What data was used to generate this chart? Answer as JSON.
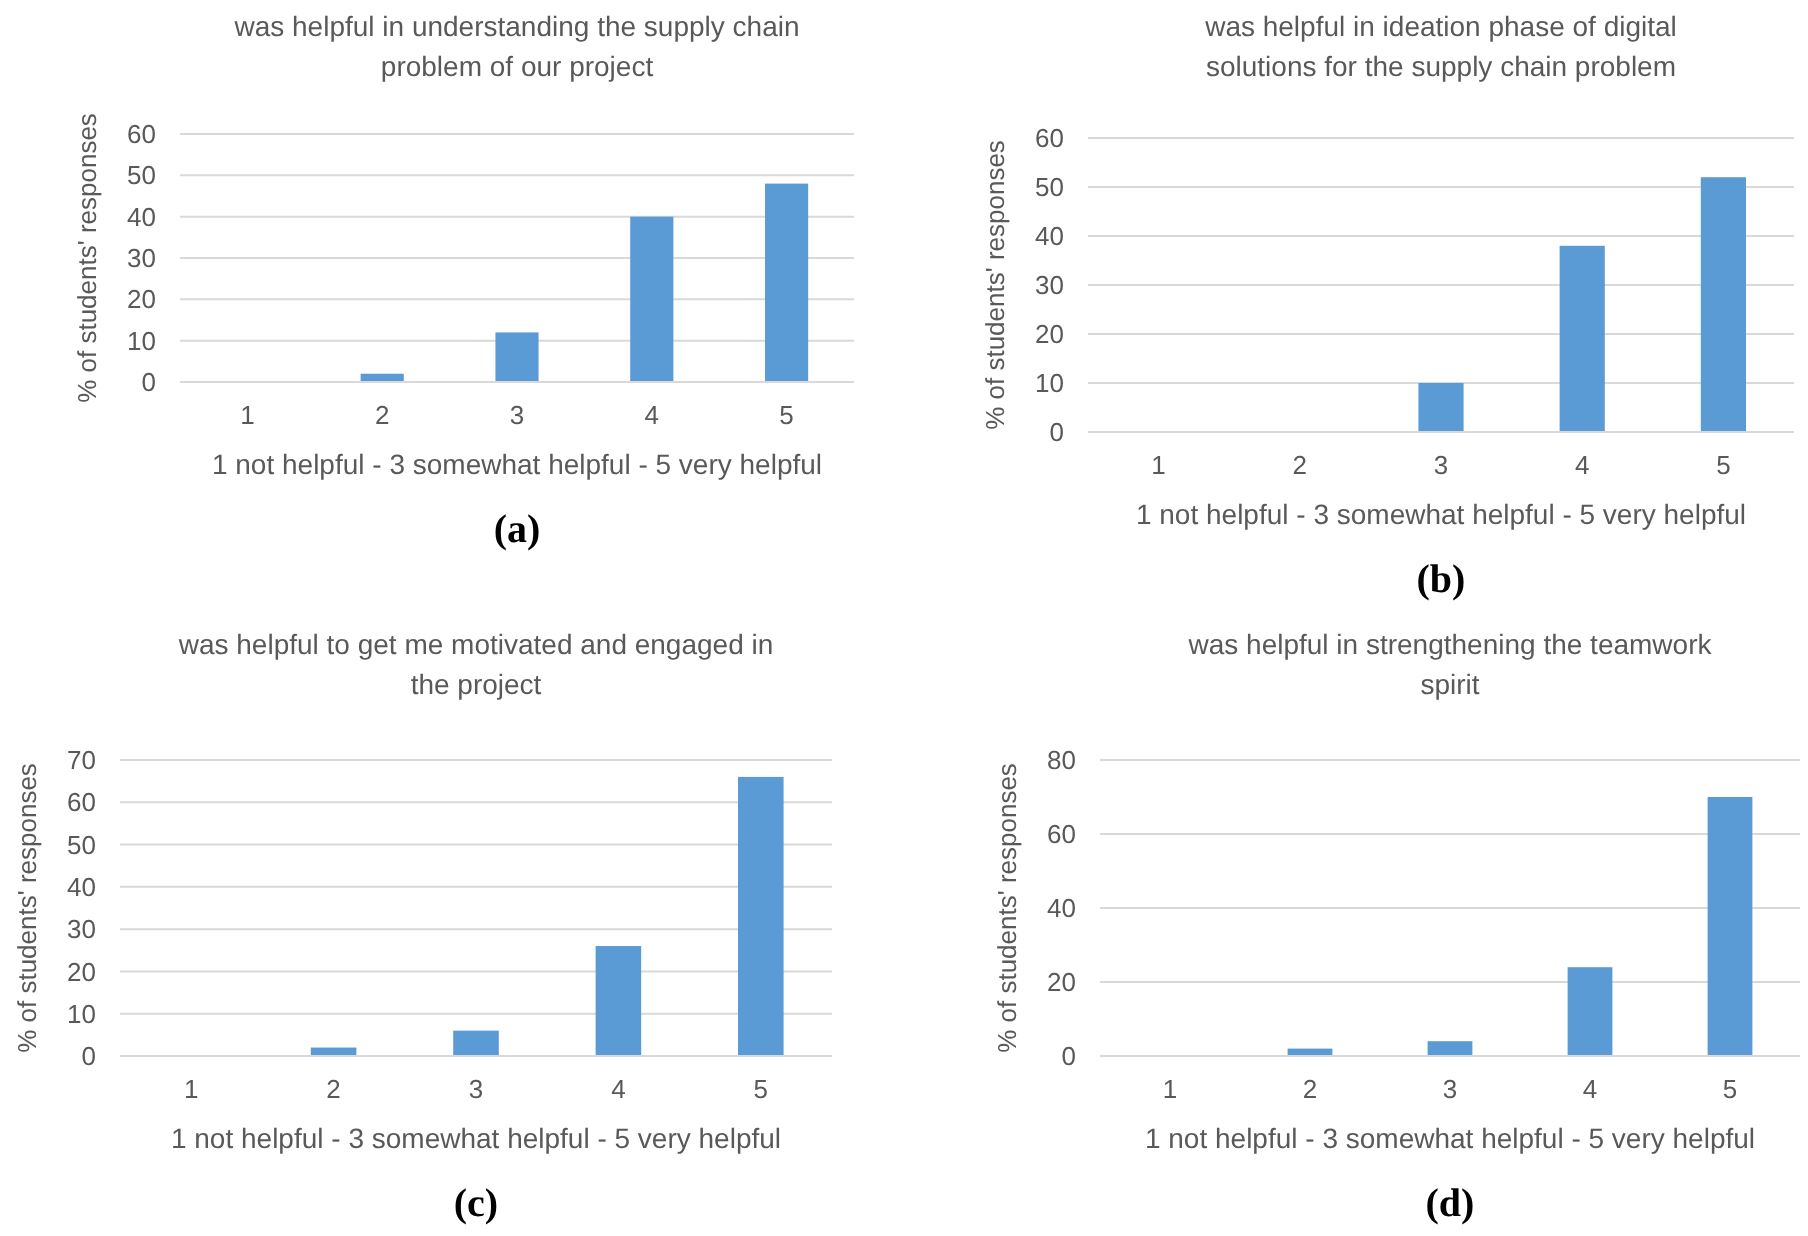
{
  "chart_data": [
    {
      "type": "bar",
      "title": "was helpful in understanding the supply chain problem of our project",
      "xlabel": "1 not helpful - 3 somewhat helpful - 5 very helpful",
      "ylabel": "% of students' responses",
      "categories": [
        "1",
        "2",
        "3",
        "4",
        "5"
      ],
      "values": [
        0,
        2,
        12,
        40,
        48
      ],
      "color": "#5b9bd5",
      "ylim": [
        0,
        60
      ],
      "yticks": [
        0,
        10,
        20,
        30,
        40,
        50,
        60
      ],
      "grid": "y",
      "annotations": [
        "(a)"
      ]
    },
    {
      "type": "bar",
      "title": "was helpful in ideation phase of digital solutions for the supply chain problem",
      "xlabel": "1 not helpful - 3 somewhat helpful - 5 very helpful",
      "ylabel": "% of students' responses",
      "categories": [
        "1",
        "2",
        "3",
        "4",
        "5"
      ],
      "values": [
        0,
        0,
        10,
        38,
        52
      ],
      "color": "#5b9bd5",
      "ylim": [
        0,
        60
      ],
      "yticks": [
        0,
        10,
        20,
        30,
        40,
        50,
        60
      ],
      "grid": "y",
      "annotations": [
        "(b)"
      ]
    },
    {
      "type": "bar",
      "title": "was helpful to get me motivated and engaged in the project",
      "xlabel": "1 not helpful - 3 somewhat helpful - 5 very helpful",
      "ylabel": "% of students' responses",
      "categories": [
        "1",
        "2",
        "3",
        "4",
        "5"
      ],
      "values": [
        0,
        2,
        6,
        26,
        66
      ],
      "color": "#5b9bd5",
      "ylim": [
        0,
        70
      ],
      "yticks": [
        0,
        10,
        20,
        30,
        40,
        50,
        60,
        70
      ],
      "grid": "y",
      "annotations": [
        "(c)"
      ]
    },
    {
      "type": "bar",
      "title": "was helpful in strengthening the teamwork spirit",
      "xlabel": "1 not helpful - 3 somewhat helpful - 5 very helpful",
      "ylabel": "% of students' responses",
      "categories": [
        "1",
        "2",
        "3",
        "4",
        "5"
      ],
      "values": [
        0,
        2,
        4,
        24,
        70
      ],
      "color": "#5b9bd5",
      "ylim": [
        0,
        80
      ],
      "yticks": [
        0,
        20,
        40,
        60,
        80
      ],
      "grid": "y",
      "annotations": [
        "(d)"
      ]
    }
  ]
}
